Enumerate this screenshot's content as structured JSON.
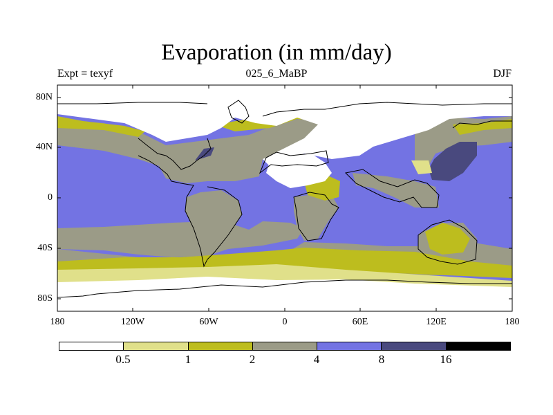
{
  "title": "Evaporation (in mm/day)",
  "left_string": "Expt = texyf",
  "center_string": "025_6_MaBP",
  "right_string": "DJF",
  "lat_labels": [
    "80N",
    "40N",
    "0",
    "40S",
    "80S"
  ],
  "lon_labels": [
    "180",
    "120W",
    "60W",
    "0",
    "60E",
    "120E",
    "180"
  ],
  "colorbar": {
    "colors": [
      "#ffffff",
      "#e0e08a",
      "#bdbd1e",
      "#9b9b87",
      "#7373e3",
      "#49497e",
      "#000000"
    ],
    "labels": [
      "0.5",
      "1",
      "2",
      "4",
      "8",
      "16"
    ]
  }
}
